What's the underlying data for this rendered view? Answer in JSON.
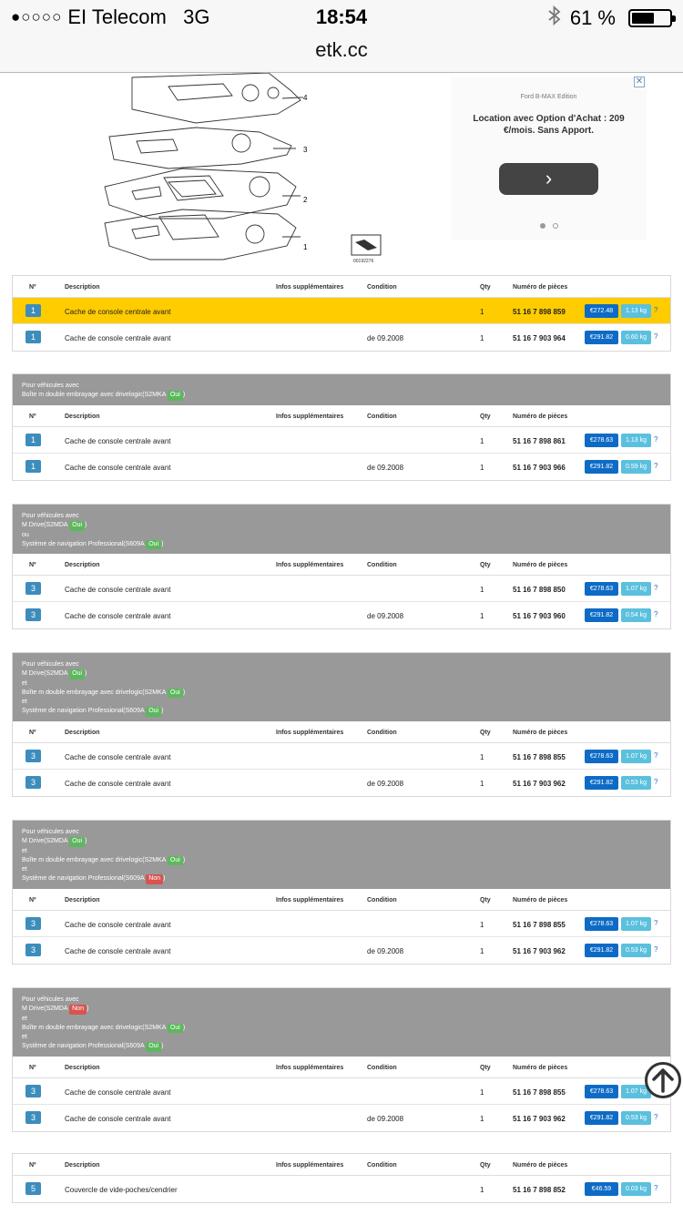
{
  "status": {
    "carrier_dots": "●○○○○",
    "carrier": "EI Telecom",
    "network": "3G",
    "time": "18:54",
    "battery_pct": "61 %",
    "battery_level": 0.61
  },
  "url": "etk.cc",
  "diagram": {
    "labels": [
      "4",
      "3",
      "2",
      "1"
    ],
    "ref": "00192276"
  },
  "ad": {
    "brand": "Ford B-MAX Edition",
    "text": "Location avec Option d'Achat : 209 €/mois. Sans Apport.",
    "close": "✕",
    "next": "›"
  },
  "headers": {
    "no": "Nº",
    "desc": "Description",
    "info": "Infos supplémentaires",
    "cond": "Condition",
    "qty": "Qty",
    "pn": "Numéro de pièces"
  },
  "groups": [
    {
      "rows": [
        {
          "pos": "1",
          "desc": "Cache de console centrale avant",
          "cond": "",
          "qty": "1",
          "pn": "51 16 7 898 859",
          "price": "€272.48",
          "weight": "1.13 kg",
          "hl": true
        },
        {
          "pos": "1",
          "desc": "Cache de console centrale avant",
          "cond": "de 09.2008",
          "qty": "1",
          "pn": "51 16 7 903 964",
          "price": "€291.82",
          "weight": "0.60 kg"
        }
      ]
    },
    {
      "cond_lines": [
        {
          "t": "Pour véhicules avec"
        },
        {
          "t": "Boîte m double embrayage avec drivelogic(S2MKA ",
          "tag": "Oui",
          "tail": ")"
        }
      ],
      "rows": [
        {
          "pos": "1",
          "desc": "Cache de console centrale avant",
          "cond": "",
          "qty": "1",
          "pn": "51 16 7 898 861",
          "price": "€278.63",
          "weight": "1.13 kg"
        },
        {
          "pos": "1",
          "desc": "Cache de console centrale avant",
          "cond": "de 09.2008",
          "qty": "1",
          "pn": "51 16 7 903 966",
          "price": "€291.82",
          "weight": "0.59 kg"
        }
      ]
    },
    {
      "cond_lines": [
        {
          "t": "Pour véhicules avec"
        },
        {
          "t": "M Drive(S2MDA ",
          "tag": "Oui",
          "tail": ")"
        },
        {
          "t": "ou"
        },
        {
          "t": "Système de navigation Professional(S609A ",
          "tag": "Oui",
          "tail": ")"
        }
      ],
      "rows": [
        {
          "pos": "3",
          "desc": "Cache de console centrale avant",
          "cond": "",
          "qty": "1",
          "pn": "51 16 7 898 850",
          "price": "€278.63",
          "weight": "1.07 kg"
        },
        {
          "pos": "3",
          "desc": "Cache de console centrale avant",
          "cond": "de 09.2008",
          "qty": "1",
          "pn": "51 16 7 903 960",
          "price": "€291.82",
          "weight": "0.54 kg"
        }
      ]
    },
    {
      "cond_lines": [
        {
          "t": "Pour véhicules avec"
        },
        {
          "t": "M Drive(S2MDA ",
          "tag": "Oui",
          "tail": ")"
        },
        {
          "t": "et"
        },
        {
          "t": "Boîte m double embrayage avec drivelogic(S2MKA ",
          "tag": "Oui",
          "tail": ")"
        },
        {
          "t": "et"
        },
        {
          "t": "Système de navigation Professional(S609A ",
          "tag": "Oui",
          "tail": ")"
        }
      ],
      "rows": [
        {
          "pos": "3",
          "desc": "Cache de console centrale avant",
          "cond": "",
          "qty": "1",
          "pn": "51 16 7 898 855",
          "price": "€278.63",
          "weight": "1.07 kg"
        },
        {
          "pos": "3",
          "desc": "Cache de console centrale avant",
          "cond": "de 09.2008",
          "qty": "1",
          "pn": "51 16 7 903 962",
          "price": "€291.82",
          "weight": "0.53 kg"
        }
      ]
    },
    {
      "cond_lines": [
        {
          "t": "Pour véhicules avec"
        },
        {
          "t": "M Drive(S2MDA ",
          "tag": "Oui",
          "tail": ")"
        },
        {
          "t": "et"
        },
        {
          "t": "Boîte m double embrayage avec drivelogic(S2MKA ",
          "tag": "Oui",
          "tail": ")"
        },
        {
          "t": "et"
        },
        {
          "t": "Système de navigation Professional(S609A ",
          "tag": "Non",
          "tail": ")"
        }
      ],
      "rows": [
        {
          "pos": "3",
          "desc": "Cache de console centrale avant",
          "cond": "",
          "qty": "1",
          "pn": "51 16 7 898 855",
          "price": "€278.63",
          "weight": "1.07 kg"
        },
        {
          "pos": "3",
          "desc": "Cache de console centrale avant",
          "cond": "de 09.2008",
          "qty": "1",
          "pn": "51 16 7 903 962",
          "price": "€291.82",
          "weight": "0.53 kg"
        }
      ]
    },
    {
      "cond_lines": [
        {
          "t": "Pour véhicules avec"
        },
        {
          "t": "M Drive(S2MDA ",
          "tag": "Non",
          "tail": ")"
        },
        {
          "t": "et"
        },
        {
          "t": "Boîte m double embrayage avec drivelogic(S2MKA ",
          "tag": "Oui",
          "tail": ")"
        },
        {
          "t": "et"
        },
        {
          "t": "Système de navigation Professional(S609A ",
          "tag": "Oui",
          "tail": ")"
        }
      ],
      "rows": [
        {
          "pos": "3",
          "desc": "Cache de console centrale avant",
          "cond": "",
          "qty": "1",
          "pn": "51 16 7 898 855",
          "price": "€278.63",
          "weight": "1.07 kg"
        },
        {
          "pos": "3",
          "desc": "Cache de console centrale avant",
          "cond": "de 09.2008",
          "qty": "1",
          "pn": "51 16 7 903 962",
          "price": "€291.82",
          "weight": "0.53 kg"
        }
      ]
    },
    {
      "rows": [
        {
          "pos": "5",
          "desc": "Couvercle de vide-poches/cendrier",
          "cond": "",
          "qty": "1",
          "pn": "51 16 7 898 852",
          "price": "€46.59",
          "weight": "0.03 kg"
        }
      ]
    }
  ],
  "help_label": "?",
  "colors": {
    "highlight": "#ffcc00",
    "price": "#0d6bc6",
    "weight": "#5bc0de",
    "pos": "#3c8dbc",
    "yes": "#5cb85c",
    "no": "#d9534f",
    "cond_bg": "#999999"
  }
}
